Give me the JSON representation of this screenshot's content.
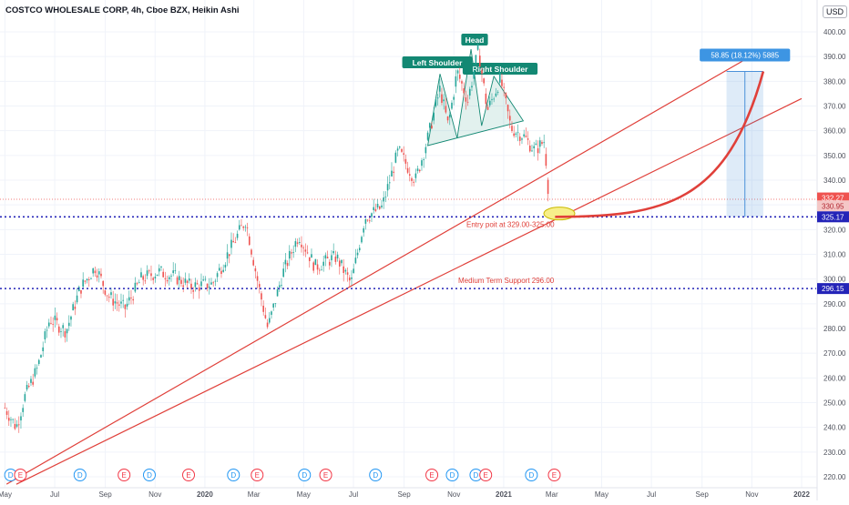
{
  "title": "COSTCO WHOLESALE CORP, 4h, Cboe BZX, Heikin Ashi",
  "currency_label": "USD",
  "colors": {
    "up": "#26a69a",
    "down": "#ef5350",
    "trend": "#e0403a",
    "level": "#2424b8",
    "pattern": "#138873",
    "projection": "#4a90d9",
    "projection_label_bg": "#3d95e3"
  },
  "annotations": {
    "head": "Head",
    "left_shoulder": "Left Shoulder",
    "right_shoulder": "Right Shoulder",
    "entry": "Entry poit at 329.00-325.00",
    "support": "Medium Term Support 296.00",
    "projection": "58.85 (18.12%) 5885"
  },
  "price_tags": {
    "current": "332.27",
    "open": "330.95",
    "entry_level": "325.17",
    "support_level": "296.15"
  },
  "chart_data": {
    "type": "candlestick",
    "symbol": "COSTCO WHOLESALE CORP",
    "interval": "4h",
    "style": "Heikin Ashi",
    "ylim": [
      217,
      405
    ],
    "y_ticks": [
      "400.00",
      "390.00",
      "380.00",
      "370.00",
      "360.00",
      "350.00",
      "340.00",
      "330.00",
      "320.00",
      "310.00",
      "300.00",
      "290.00",
      "280.00",
      "270.00",
      "260.00",
      "250.00",
      "240.00",
      "230.00",
      "220.00"
    ],
    "x_ticks": [
      "May",
      "Jul",
      "Sep",
      "Nov",
      "2020",
      "Mar",
      "May",
      "Jul",
      "Sep",
      "Nov",
      "2021",
      "Mar",
      "May",
      "Jul",
      "Sep",
      "Nov",
      "2022"
    ],
    "levels": [
      325.17,
      296.15
    ],
    "price_path": [
      {
        "date": "2019-05-01",
        "price": 248
      },
      {
        "date": "2019-05-15",
        "price": 240
      },
      {
        "date": "2019-05-25",
        "price": 252
      },
      {
        "date": "2019-06-10",
        "price": 264
      },
      {
        "date": "2019-06-25",
        "price": 284
      },
      {
        "date": "2019-07-15",
        "price": 279
      },
      {
        "date": "2019-08-01",
        "price": 296
      },
      {
        "date": "2019-08-20",
        "price": 305
      },
      {
        "date": "2019-09-05",
        "price": 293
      },
      {
        "date": "2019-09-25",
        "price": 288
      },
      {
        "date": "2019-10-15",
        "price": 300
      },
      {
        "date": "2019-11-05",
        "price": 303
      },
      {
        "date": "2019-11-25",
        "price": 301
      },
      {
        "date": "2019-12-15",
        "price": 297
      },
      {
        "date": "2020-01-10",
        "price": 298
      },
      {
        "date": "2020-02-01",
        "price": 312
      },
      {
        "date": "2020-02-20",
        "price": 324
      },
      {
        "date": "2020-03-05",
        "price": 300
      },
      {
        "date": "2020-03-18",
        "price": 280
      },
      {
        "date": "2020-04-05",
        "price": 302
      },
      {
        "date": "2020-04-25",
        "price": 318
      },
      {
        "date": "2020-05-15",
        "price": 305
      },
      {
        "date": "2020-06-10",
        "price": 309
      },
      {
        "date": "2020-06-28",
        "price": 298
      },
      {
        "date": "2020-07-15",
        "price": 325
      },
      {
        "date": "2020-08-05",
        "price": 329
      },
      {
        "date": "2020-08-25",
        "price": 352
      },
      {
        "date": "2020-09-15",
        "price": 340
      },
      {
        "date": "2020-09-30",
        "price": 357
      },
      {
        "date": "2020-10-15",
        "price": 377
      },
      {
        "date": "2020-10-25",
        "price": 362
      },
      {
        "date": "2020-11-05",
        "price": 384
      },
      {
        "date": "2020-11-18",
        "price": 372
      },
      {
        "date": "2020-12-01",
        "price": 393
      },
      {
        "date": "2020-12-12",
        "price": 368
      },
      {
        "date": "2020-12-28",
        "price": 381
      },
      {
        "date": "2021-01-10",
        "price": 361
      },
      {
        "date": "2021-01-25",
        "price": 358
      },
      {
        "date": "2021-02-08",
        "price": 352
      },
      {
        "date": "2021-02-20",
        "price": 356
      },
      {
        "date": "2021-02-26",
        "price": 330
      }
    ],
    "events": [
      {
        "date": "2019-05-08",
        "kind": "D"
      },
      {
        "date": "2019-05-20",
        "kind": "E"
      },
      {
        "date": "2019-08-01",
        "kind": "D"
      },
      {
        "date": "2019-09-24",
        "kind": "E"
      },
      {
        "date": "2019-10-25",
        "kind": "D"
      },
      {
        "date": "2019-12-12",
        "kind": "E"
      },
      {
        "date": "2020-02-05",
        "kind": "D"
      },
      {
        "date": "2020-03-05",
        "kind": "E"
      },
      {
        "date": "2020-05-02",
        "kind": "D"
      },
      {
        "date": "2020-05-28",
        "kind": "E"
      },
      {
        "date": "2020-07-28",
        "kind": "D"
      },
      {
        "date": "2020-10-05",
        "kind": "E"
      },
      {
        "date": "2020-10-30",
        "kind": "D"
      },
      {
        "date": "2020-11-28",
        "kind": "D"
      },
      {
        "date": "2020-12-10",
        "kind": "E"
      },
      {
        "date": "2021-02-04",
        "kind": "D"
      },
      {
        "date": "2021-03-04",
        "kind": "E"
      }
    ],
    "trendlines": [
      {
        "from": {
          "date": "2019-05-03",
          "price": 217
        },
        "to": {
          "date": "2021-11-15",
          "price": 393
        }
      },
      {
        "from": {
          "date": "2019-05-15",
          "price": 217
        },
        "to": {
          "date": "2022-01-01",
          "price": 373
        }
      }
    ],
    "projection": {
      "from": {
        "date": "2021-03-05",
        "price": 325.17
      },
      "to": {
        "date": "2021-11-15",
        "price": 384
      }
    }
  }
}
